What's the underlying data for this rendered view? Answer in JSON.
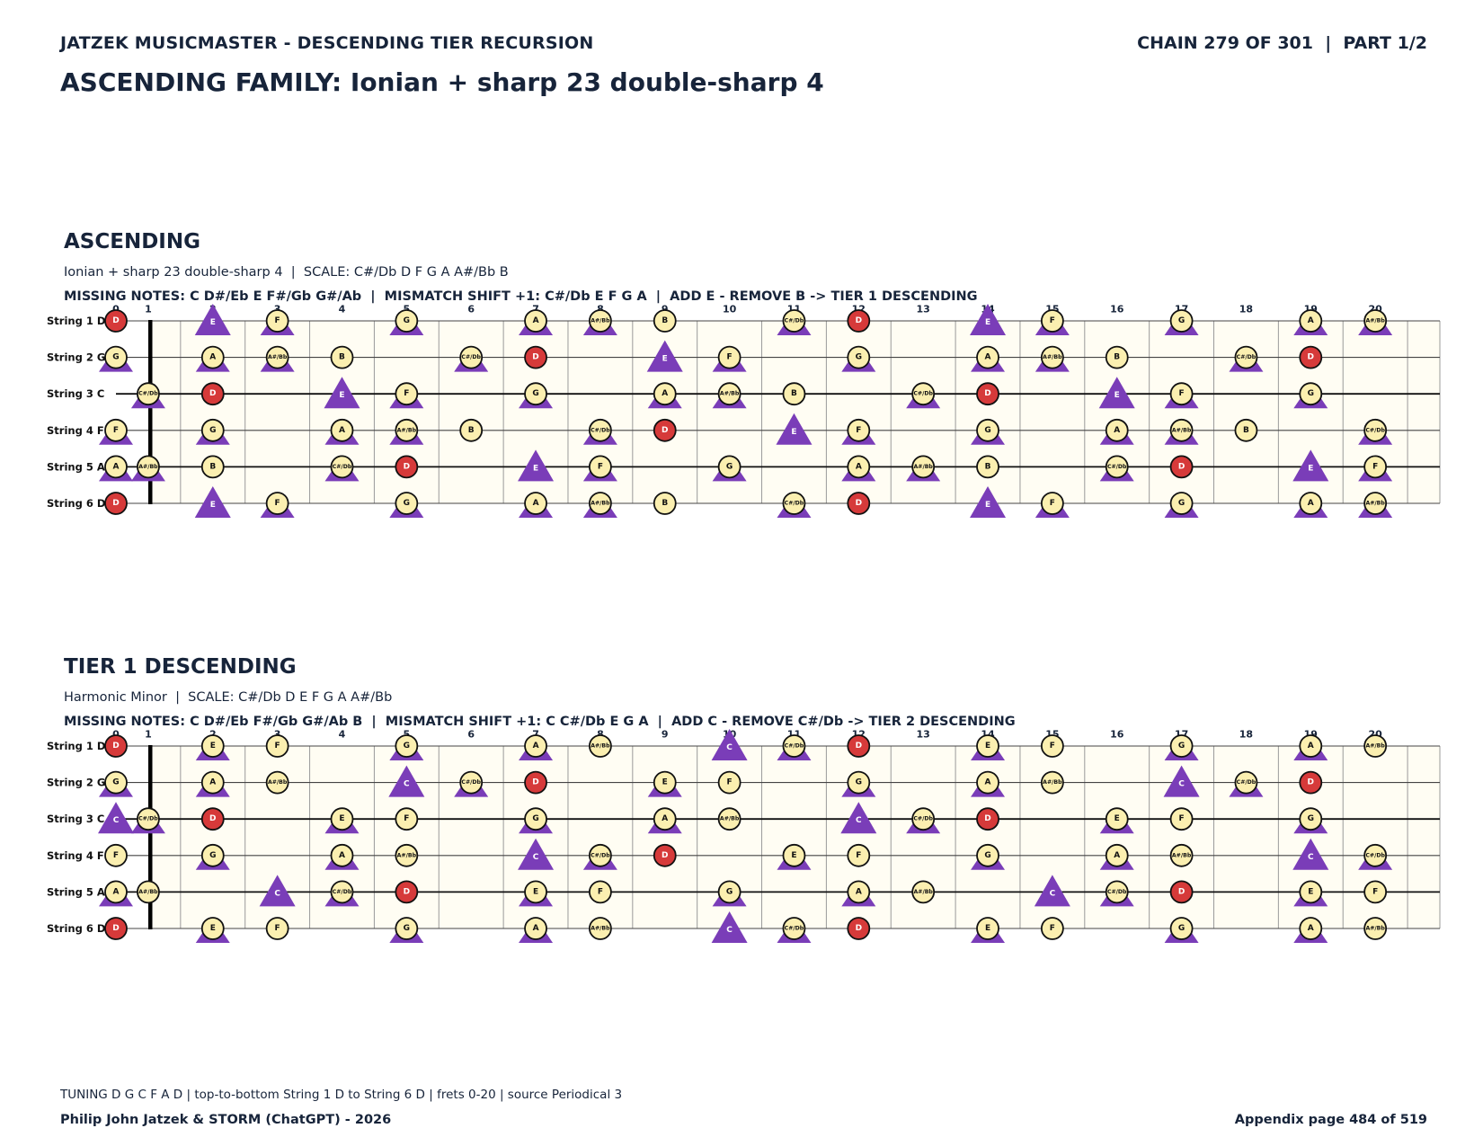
{
  "header": {
    "left": "JATZEK MUSICMASTER - DESCENDING TIER RECURSION",
    "right": "CHAIN 279 OF 301  |  PART 1/2",
    "title": "ASCENDING FAMILY: Ionian + sharp 23 double-sharp 4"
  },
  "colors": {
    "paper": "#fffdf3",
    "note_fill": "#fbefb0",
    "root_fill": "#d63a3a",
    "marker": "#7a3db8",
    "text": "#17243a"
  },
  "fretboards": [
    {
      "title": "ASCENDING",
      "subtitle": "Ionian + sharp 23 double-sharp 4  |  SCALE: C#/Db D F G A A#/Bb B",
      "info": "MISSING NOTES: C D#/Eb E F#/Gb G#/Ab  |  MISMATCH SHIFT +1: C#/Db E F G A  |  ADD E - REMOVE B -> TIER 1 DESCENDING",
      "marker_note": "E",
      "markers_bg": [
        "F",
        "G",
        "A",
        "C#/Db",
        "A#/Bb"
      ],
      "scale": [
        "C#/Db",
        "D",
        "F",
        "G",
        "A",
        "A#/Bb",
        "B"
      ],
      "root": "D"
    },
    {
      "title": "TIER 1 DESCENDING",
      "subtitle": "Harmonic Minor  |  SCALE: C#/Db D E F G A A#/Bb",
      "info": "MISSING NOTES: C D#/Eb F#/Gb G#/Ab B  |  MISMATCH SHIFT +1: C C#/Db E G A  |  ADD C - REMOVE C#/Db -> TIER 2 DESCENDING",
      "marker_note": "C",
      "markers_bg": [
        "E",
        "G",
        "A",
        "C#/Db"
      ],
      "scale": [
        "C#/Db",
        "D",
        "E",
        "F",
        "G",
        "A",
        "A#/Bb"
      ],
      "root": "D"
    }
  ],
  "strings": [
    "String 1 D",
    "String 2 G",
    "String 3 C",
    "String 4 F",
    "String 5 A",
    "String 6 D"
  ],
  "tuning": [
    "D",
    "G",
    "C",
    "F",
    "A",
    "D"
  ],
  "frets": [
    "0",
    "1",
    "2",
    "3",
    "4",
    "5",
    "6",
    "7",
    "8",
    "9",
    "10",
    "11",
    "12",
    "13",
    "14",
    "15",
    "16",
    "17",
    "18",
    "19",
    "20"
  ],
  "footer": {
    "line": "TUNING D G C F A D | top-to-bottom String 1 D to String 6 D | frets 0-20 | source Periodical 3",
    "author": "Philip John Jatzek & STORM (ChatGPT) - 2026",
    "page": "Appendix page 484 of 519"
  }
}
